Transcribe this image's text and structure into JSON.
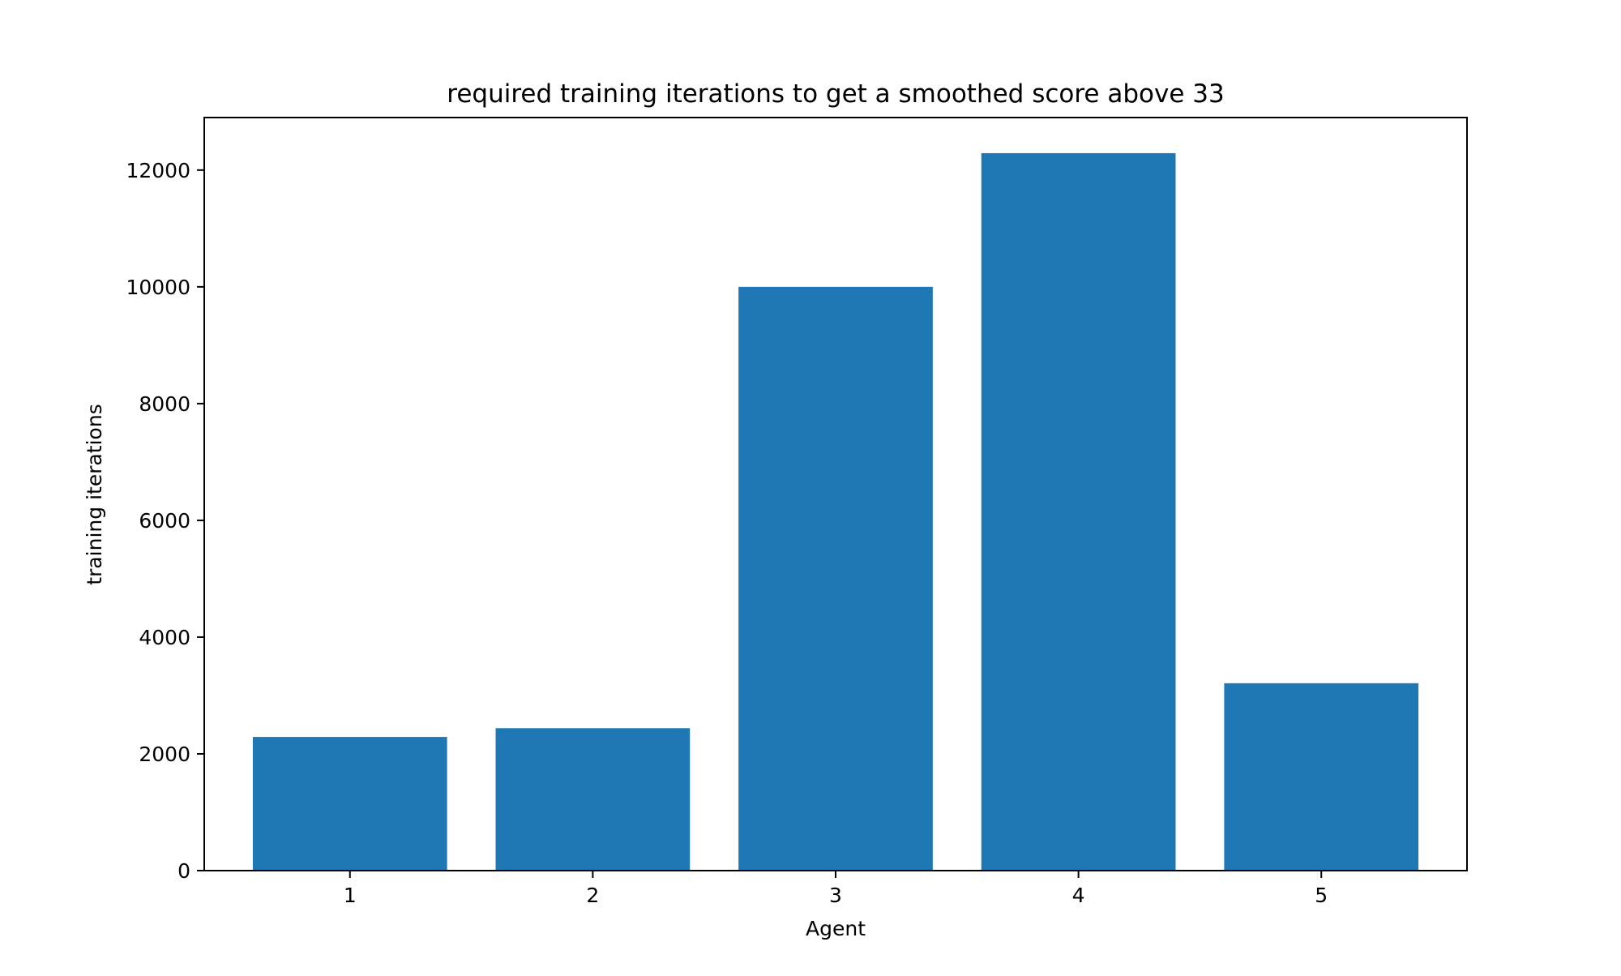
{
  "chart_data": {
    "type": "bar",
    "title": "required training iterations to get a smoothed score above 33",
    "xlabel": "Agent",
    "ylabel": "training iterations",
    "categories": [
      "1",
      "2",
      "3",
      "4",
      "5"
    ],
    "values": [
      2290,
      2440,
      10000,
      12290,
      3210
    ],
    "ylim": [
      0,
      12900
    ],
    "yticks": [
      0,
      2000,
      4000,
      6000,
      8000,
      10000,
      12000
    ],
    "ytick_labels": [
      "0",
      "2000",
      "4000",
      "6000",
      "8000",
      "10000",
      "12000"
    ],
    "bar_color": "#1f77b4",
    "grid": false,
    "legend": "none"
  }
}
